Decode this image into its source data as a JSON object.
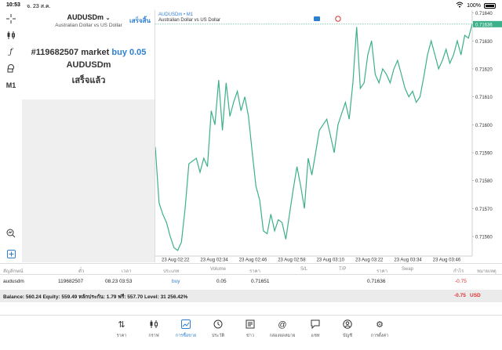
{
  "status": {
    "time": "10:53",
    "date": "จ. 23 ส.ค.",
    "battery": "100%"
  },
  "order_panel": {
    "symbol": "AUDUSDm",
    "description": "Australian Dollar vs US Dollar",
    "done_label": "เสร็จสิ้น",
    "ticket": "#119682507 market",
    "side": "buy 0.05",
    "symbol_line": "AUDUSDm",
    "status_text": "เสร็จแล้ว"
  },
  "left_tools": {
    "timeframe": "M1"
  },
  "chart": {
    "title": "AUDUSDm • M1",
    "subtitle": "Australian Dollar vs US Dollar",
    "current_price": "0.71636",
    "accent": "#2f7fd1",
    "line_color": "#3cb08a"
  },
  "chart_data": {
    "type": "line",
    "y_ticks": [
      "0.71640",
      "0.71630",
      "0.71620",
      "0.71610",
      "0.71600",
      "0.71590",
      "0.71580",
      "0.71570",
      "0.71560"
    ],
    "x_ticks": [
      "23 Aug 02:22",
      "23 Aug 02:34",
      "23 Aug 02:46",
      "23 Aug 02:58",
      "23 Aug 03:10",
      "23 Aug 03:22",
      "23 Aug 03:34",
      "23 Aug 03:46"
    ],
    "ylim": [
      0.71553,
      0.71641
    ],
    "series": [
      {
        "values": [
          0.71592,
          0.71572,
          0.71568,
          0.71565,
          0.7156,
          0.71556,
          0.71555,
          0.71558,
          0.7157,
          0.71586,
          0.71587,
          0.71588,
          0.71583,
          0.71588,
          0.71585,
          0.71605,
          0.716,
          0.71616,
          0.71598,
          0.71615,
          0.71603,
          0.71608,
          0.71612,
          0.71605,
          0.7161,
          0.71603,
          0.7159,
          0.71578,
          0.71573,
          0.71562,
          0.71561,
          0.71568,
          0.71562,
          0.71566,
          0.71565,
          0.71559,
          0.71568,
          0.71577,
          0.71585,
          0.71578,
          0.7157,
          0.71588,
          0.71582,
          0.7159,
          0.71598,
          0.716,
          0.71602,
          0.71596,
          0.7159,
          0.716,
          0.71604,
          0.71608,
          0.71602,
          0.71615,
          0.71635,
          0.71613,
          0.71615,
          0.71625,
          0.7163,
          0.71618,
          0.71615,
          0.7162,
          0.71618,
          0.71615,
          0.7162,
          0.71623,
          0.71618,
          0.71613,
          0.7161,
          0.71612,
          0.71608,
          0.7161,
          0.71617,
          0.71625,
          0.7163,
          0.71625,
          0.7162,
          0.71623,
          0.71627,
          0.71622,
          0.71625,
          0.7163,
          0.71625,
          0.71632,
          0.71631,
          0.71636
        ]
      }
    ]
  },
  "table": {
    "headers": [
      "สัญลักษณ์",
      "ตั๋ว",
      "เวลา",
      "ประเภท",
      "Volume",
      "ราคา",
      "S/L",
      "T/P",
      "ราคา",
      "Swap",
      "กำไร",
      "หมายเหตุ"
    ],
    "row": [
      "audusdm",
      "119682507",
      "08.23 03:53",
      "buy",
      "0.05",
      "0.71651",
      "",
      "",
      "0.71636",
      "",
      "-0.75",
      ""
    ],
    "balance": "Balance: 560.24 Equity: 559.49 หลักประกัน: 1.79 ฟรี: 557.70 Level: 31 256.42%",
    "balance_pl": "-0.75",
    "currency": "USD"
  },
  "tabs": [
    {
      "label": "ราคา",
      "icon": "quotes-icon"
    },
    {
      "label": "กราฟ",
      "icon": "chart-candles-icon"
    },
    {
      "label": "การซื้อขาย",
      "icon": "trade-icon"
    },
    {
      "label": "ประวัติ",
      "icon": "history-icon"
    },
    {
      "label": "ข่าว",
      "icon": "news-icon"
    },
    {
      "label": "กล่องจดหมาย",
      "icon": "mailbox-icon"
    },
    {
      "label": "แชท",
      "icon": "chat-icon"
    },
    {
      "label": "บัญชี",
      "icon": "account-icon"
    },
    {
      "label": "การตั้งค่า",
      "icon": "settings-icon"
    }
  ]
}
